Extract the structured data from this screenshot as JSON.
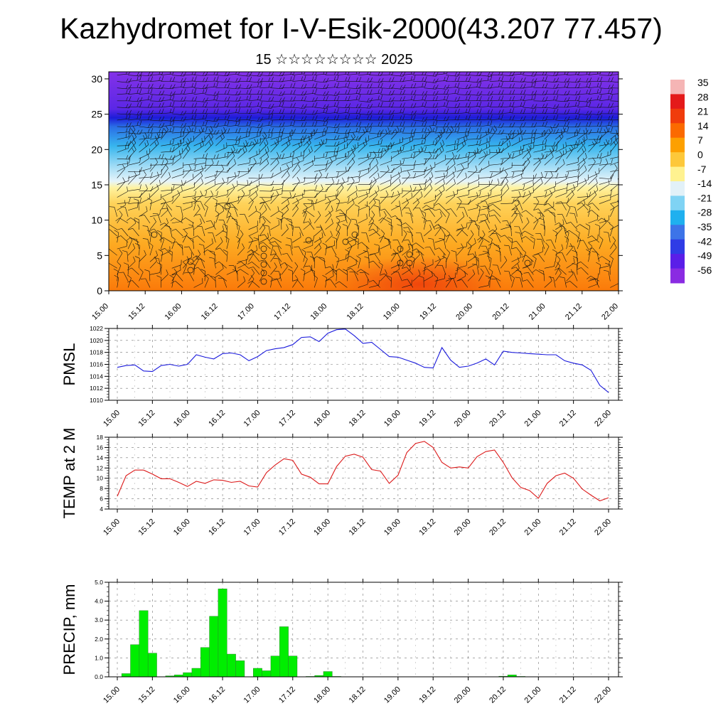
{
  "page": {
    "title": "Kazhydromet for I-V-Esik-2000(43.207 77.457)",
    "subtitle": "15 ☆☆☆☆☆☆☆☆ 2025"
  },
  "colors": {
    "pmsl_line": "#1a1adc",
    "temp_line": "#dc1a1a",
    "precip_bar": "#00ee00",
    "precip_edge": "#2a8a2a",
    "wind_barb": "#111111"
  },
  "chart_data": [
    {
      "type": "heatmap",
      "name": "cross-section",
      "x_tick_labels": [
        "15.00",
        "15.12",
        "16.00",
        "16.12",
        "17.00",
        "17.12",
        "18.00",
        "18.12",
        "19.00",
        "19.12",
        "20.00",
        "20.12",
        "21.00",
        "21.12",
        "22.00"
      ],
      "ylim": [
        0,
        31
      ],
      "y_ticks": [
        0,
        5,
        10,
        15,
        20,
        25,
        30
      ],
      "colorbar_labels": [
        "35",
        "28",
        "21",
        "14",
        "7",
        "0",
        "-7",
        "-14",
        "-21",
        "-28",
        "-35",
        "-42",
        "-49",
        "-56"
      ],
      "colorbar_colors": [
        "#f5b5b5",
        "#e41a1a",
        "#f03c0c",
        "#fb6a00",
        "#fda000",
        "#fdc83a",
        "#fff290",
        "#e2f1f8",
        "#7fd3f4",
        "#1fb0ef",
        "#3d74e8",
        "#2f3ce6",
        "#5a1ee8",
        "#8a2be2"
      ],
      "grid": false
    },
    {
      "type": "line",
      "name": "PMSL",
      "ylabel": "PMSL",
      "ylim": [
        1010,
        1022
      ],
      "y_ticks": [
        1010,
        1012,
        1014,
        1016,
        1018,
        1020,
        1022
      ],
      "x_tick_labels": [
        "15.00",
        "15.12",
        "16.00",
        "16.12",
        "17.00",
        "17.12",
        "18.00",
        "18.12",
        "19.00",
        "19.12",
        "20.00",
        "20.12",
        "21.00",
        "21.12",
        "22.00"
      ],
      "x": [
        0,
        3,
        6,
        9,
        12,
        15,
        18,
        21,
        24,
        27,
        30,
        33,
        36,
        39,
        42,
        45,
        48,
        51,
        54,
        57,
        60,
        63,
        66,
        69,
        72,
        75,
        78,
        81,
        84,
        87,
        90,
        93,
        96,
        99,
        102,
        105,
        108,
        111,
        114,
        117,
        120,
        123,
        126,
        129,
        132,
        135,
        138,
        141,
        144,
        147,
        150,
        153,
        156,
        159,
        162,
        165,
        168
      ],
      "values": [
        1015.5,
        1015.8,
        1015.9,
        1014.9,
        1014.8,
        1015.8,
        1016.0,
        1015.7,
        1016.0,
        1017.6,
        1017.2,
        1016.9,
        1017.8,
        1017.9,
        1017.6,
        1016.6,
        1017.3,
        1018.3,
        1018.6,
        1018.8,
        1019.3,
        1020.5,
        1020.6,
        1019.8,
        1021.2,
        1021.8,
        1021.9,
        1020.8,
        1019.5,
        1019.7,
        1018.5,
        1017.3,
        1017.2,
        1016.7,
        1016.2,
        1015.5,
        1015.4,
        1018.8,
        1016.7,
        1015.5,
        1015.7,
        1016.2,
        1016.9,
        1015.9,
        1018.2,
        1018.0,
        1017.9,
        1017.8,
        1017.7,
        1017.6,
        1017.6,
        1016.6,
        1016.2,
        1015.9,
        1015.0,
        1012.5,
        1011.3
      ],
      "grid": true
    },
    {
      "type": "line",
      "name": "TEMP",
      "ylabel": "TEMP at 2 M",
      "ylim": [
        4,
        18
      ],
      "y_ticks": [
        4,
        6,
        8,
        10,
        12,
        14,
        16,
        18
      ],
      "x_tick_labels": [
        "15.00",
        "15.12",
        "16.00",
        "16.12",
        "17.00",
        "17.12",
        "18.00",
        "18.12",
        "19.00",
        "19.12",
        "20.00",
        "20.12",
        "21.00",
        "21.12",
        "22.00"
      ],
      "x": [
        0,
        3,
        6,
        9,
        12,
        15,
        18,
        21,
        24,
        27,
        30,
        33,
        36,
        39,
        42,
        45,
        48,
        51,
        54,
        57,
        60,
        63,
        66,
        69,
        72,
        75,
        78,
        81,
        84,
        87,
        90,
        93,
        96,
        99,
        102,
        105,
        108,
        111,
        114,
        117,
        120,
        123,
        126,
        129,
        132,
        135,
        138,
        141,
        144,
        147,
        150,
        153,
        156,
        159,
        162,
        165,
        168
      ],
      "values": [
        6.5,
        10.5,
        11.6,
        11.6,
        10.8,
        9.9,
        9.9,
        9.2,
        8.4,
        9.4,
        9.0,
        9.7,
        9.6,
        9.2,
        9.4,
        8.5,
        8.3,
        11.1,
        12.6,
        13.8,
        13.5,
        10.8,
        10.2,
        8.9,
        8.9,
        12.3,
        14.3,
        14.7,
        14.1,
        11.7,
        11.4,
        9.0,
        10.6,
        15.0,
        16.8,
        17.2,
        16.0,
        13.1,
        12.0,
        12.2,
        12.0,
        14.2,
        15.2,
        15.5,
        13.1,
        10.1,
        8.2,
        7.6,
        6.1,
        9.0,
        10.5,
        11.0,
        10.0,
        7.9,
        6.7,
        5.6,
        6.2
      ],
      "grid": true
    },
    {
      "type": "bar",
      "name": "PRECIP",
      "ylabel": "PRECIP, mm",
      "ylim": [
        0,
        5
      ],
      "y_ticks": [
        "0.0",
        "1.0",
        "2.0",
        "3.0",
        "4.0",
        "5.0"
      ],
      "x_tick_labels": [
        "15.00",
        "15.12",
        "16.00",
        "16.12",
        "17.00",
        "17.12",
        "18.00",
        "18.12",
        "19.00",
        "19.12",
        "20.00",
        "20.12",
        "21.00",
        "21.12",
        "22.00"
      ],
      "x": [
        0,
        3,
        6,
        9,
        12,
        15,
        18,
        21,
        24,
        27,
        30,
        33,
        36,
        39,
        42,
        45,
        48,
        51,
        54,
        57,
        60,
        63,
        66,
        69,
        72,
        75,
        78,
        81,
        84,
        87,
        90,
        93,
        96,
        99,
        102,
        105,
        108,
        111,
        114,
        117,
        120,
        123,
        126,
        129,
        132,
        135,
        138,
        141,
        144,
        147,
        150,
        153,
        156,
        159,
        162,
        165,
        168
      ],
      "values": [
        0.0,
        0.17,
        1.7,
        3.5,
        1.25,
        0.0,
        0.05,
        0.1,
        0.22,
        0.45,
        1.55,
        3.2,
        4.65,
        1.2,
        0.85,
        0.0,
        0.45,
        0.32,
        1.1,
        2.65,
        1.1,
        0.0,
        0.02,
        0.07,
        0.28,
        0.02,
        0.0,
        0.0,
        0.0,
        0.0,
        0.0,
        0.0,
        0.0,
        0.0,
        0.0,
        0.0,
        0.0,
        0.0,
        0.0,
        0.0,
        0.0,
        0.0,
        0.0,
        0.0,
        0.03,
        0.1,
        0.02,
        0.0,
        0.0,
        0.0,
        0.0,
        0.0,
        0.0,
        0.0,
        0.0,
        0.0,
        0.0
      ],
      "grid": true
    }
  ]
}
